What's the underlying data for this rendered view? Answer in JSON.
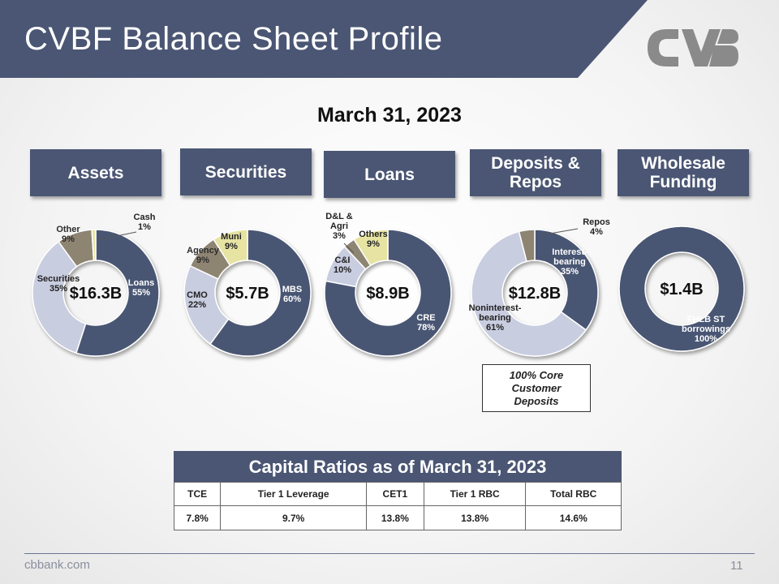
{
  "header": {
    "title": "CVBF Balance Sheet Profile"
  },
  "subtitle": "March 31, 2023",
  "categories": [
    {
      "label": "Assets"
    },
    {
      "label": "Securities"
    },
    {
      "label": "Loans"
    },
    {
      "label": "Deposits &\nRepos"
    },
    {
      "label": "Wholesale\nFunding"
    }
  ],
  "colors": {
    "dark_blue": "#4a5673",
    "light_lavender": "#c9cde0",
    "khaki": "#8e8472",
    "yellow": "#e6e3a3"
  },
  "chart_data": [
    {
      "type": "pie",
      "name": "Assets",
      "center_label": "$16.3B",
      "slices": [
        {
          "label": "Loans",
          "value": 55,
          "text": "55%",
          "color": "#4a5673"
        },
        {
          "label": "Securities",
          "value": 35,
          "text": "35%",
          "color": "#c9cde0"
        },
        {
          "label": "Other",
          "value": 9,
          "text": "9%",
          "color": "#8e8472"
        },
        {
          "label": "Cash",
          "value": 1,
          "text": "1%",
          "color": "#e6e3a3"
        }
      ]
    },
    {
      "type": "pie",
      "name": "Securities",
      "center_label": "$5.7B",
      "slices": [
        {
          "label": "MBS",
          "value": 60,
          "text": "60%",
          "color": "#4a5673"
        },
        {
          "label": "CMO",
          "value": 22,
          "text": "22%",
          "color": "#c9cde0"
        },
        {
          "label": "Agency",
          "value": 9,
          "text": "9%",
          "color": "#8e8472"
        },
        {
          "label": "Muni",
          "value": 9,
          "text": "9%",
          "color": "#e6e3a3"
        }
      ]
    },
    {
      "type": "pie",
      "name": "Loans",
      "center_label": "$8.9B",
      "slices": [
        {
          "label": "CRE",
          "value": 78,
          "text": "78%",
          "color": "#4a5673"
        },
        {
          "label": "C&I",
          "value": 10,
          "text": "10%",
          "color": "#c9cde0"
        },
        {
          "label": "D&L & Agri",
          "value": 3,
          "text": "3%",
          "color": "#8e8472"
        },
        {
          "label": "Others",
          "value": 9,
          "text": "9%",
          "color": "#e6e3a3"
        }
      ]
    },
    {
      "type": "pie",
      "name": "Deposits & Repos",
      "center_label": "$12.8B",
      "slices": [
        {
          "label": "Interest-bearing",
          "value": 35,
          "text": "35%",
          "color": "#4a5673"
        },
        {
          "label": "Noninterest-bearing",
          "value": 61,
          "text": "61%",
          "color": "#c9cde0"
        },
        {
          "label": "Repos",
          "value": 4,
          "text": "4%",
          "color": "#8e8472"
        }
      ]
    },
    {
      "type": "pie",
      "name": "Wholesale Funding",
      "center_label": "$1.4B",
      "slices": [
        {
          "label": "FHLB ST borrowings",
          "value": 100,
          "text": "100%",
          "color": "#4a5673"
        }
      ]
    }
  ],
  "deposit_note": [
    "100% Core",
    "Customer",
    "Deposits"
  ],
  "capital": {
    "title": "Capital Ratios as of March 31, 2023",
    "headers": [
      "TCE",
      "Tier 1 Leverage",
      "CET1",
      "Tier 1 RBC",
      "Total RBC"
    ],
    "values": [
      "7.8%",
      "9.7%",
      "13.8%",
      "13.8%",
      "14.6%"
    ]
  },
  "footer": {
    "site": "cbbank.com",
    "page": "11"
  }
}
